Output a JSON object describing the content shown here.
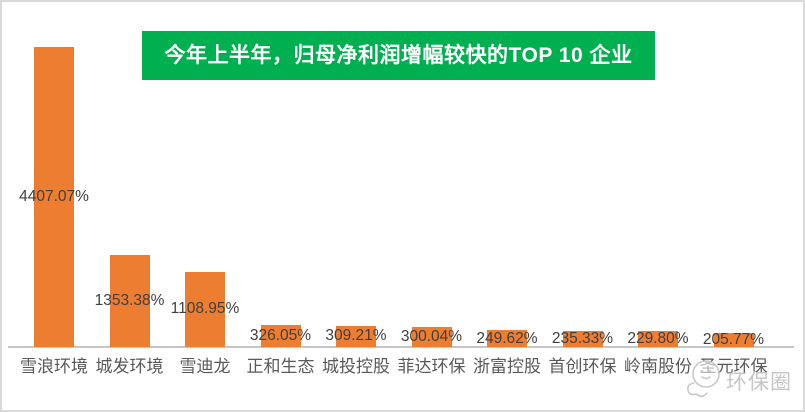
{
  "page": {
    "watermark_text": "环保圈"
  },
  "chart_data": {
    "type": "bar",
    "title": "今年上半年，归母净利润增幅较快的TOP 10 企业",
    "categories": [
      "雪浪环境",
      "城发环境",
      "雪迪龙",
      "正和生态",
      "城投控股",
      "菲达环保",
      "浙富控股",
      "首创环保",
      "岭南股份",
      "圣元环保"
    ],
    "values": [
      4407.07,
      1353.38,
      1108.95,
      326.05,
      309.21,
      300.04,
      249.62,
      235.33,
      229.8,
      205.77
    ],
    "value_labels": [
      "4407.07%",
      "1353.38%",
      "1108.95%",
      "326.05%",
      "309.21%",
      "300.04%",
      "249.62%",
      "235.33%",
      "229.80%",
      "205.77%"
    ],
    "unit": "%",
    "xlabel": "",
    "ylabel": "",
    "ylim": [
      0,
      4407.07
    ],
    "gridlines": false,
    "legend_position": "none",
    "data_label_position": "inside-center",
    "colors": {
      "bar": "#ED7D31",
      "title_background": "#00B050",
      "title_text": "#FFFFFF",
      "axis_line": "#C6C6C6",
      "value_label": "#404040",
      "category_label": "#595959",
      "canvas_border": "#D9D9D9",
      "watermark": "#C6C6C6"
    }
  }
}
